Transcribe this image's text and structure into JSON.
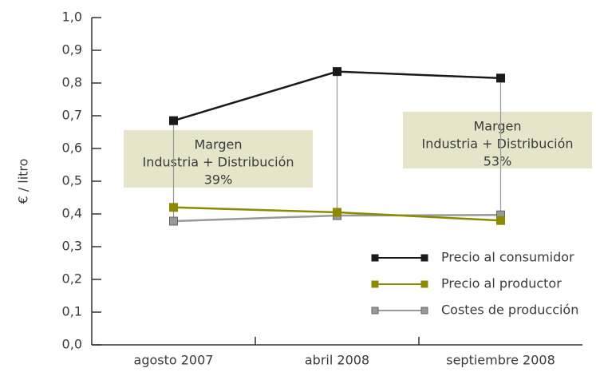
{
  "chart_data": {
    "type": "line",
    "ylabel": "€ / litro",
    "categories": [
      "agosto 2007",
      "abril 2008",
      "septiembre 2008"
    ],
    "series": [
      {
        "name": "Precio al consumidor",
        "color": "#1a1a1a",
        "values": [
          0.685,
          0.835,
          0.815
        ]
      },
      {
        "name": "Precio al productor",
        "color": "#8c8a00",
        "values": [
          0.42,
          0.405,
          0.38
        ]
      },
      {
        "name": "Costes de producción",
        "color": "#999999",
        "values": [
          0.378,
          0.395,
          0.397
        ]
      }
    ],
    "ylim": [
      0,
      1
    ],
    "yticks": [
      {
        "value": 0,
        "label": "0,0"
      },
      {
        "value": 0.1,
        "label": "0,1"
      },
      {
        "value": 0.2,
        "label": "0,2"
      },
      {
        "value": 0.3,
        "label": "0,3"
      },
      {
        "value": 0.4,
        "label": "0,4"
      },
      {
        "value": 0.5,
        "label": "0,5"
      },
      {
        "value": 0.6,
        "label": "0,6"
      },
      {
        "value": 0.7,
        "label": "0,7"
      },
      {
        "value": 0.8,
        "label": "0,8"
      },
      {
        "value": 0.9,
        "label": "0,9"
      },
      {
        "value": 1,
        "label": "1,0"
      }
    ],
    "annotations": [
      {
        "lines": [
          "Margen",
          "Industria + Distribución",
          "39%"
        ]
      },
      {
        "lines": [
          "Margen",
          "Industria + Distribución",
          "53%"
        ]
      }
    ],
    "legend": "lower right"
  }
}
